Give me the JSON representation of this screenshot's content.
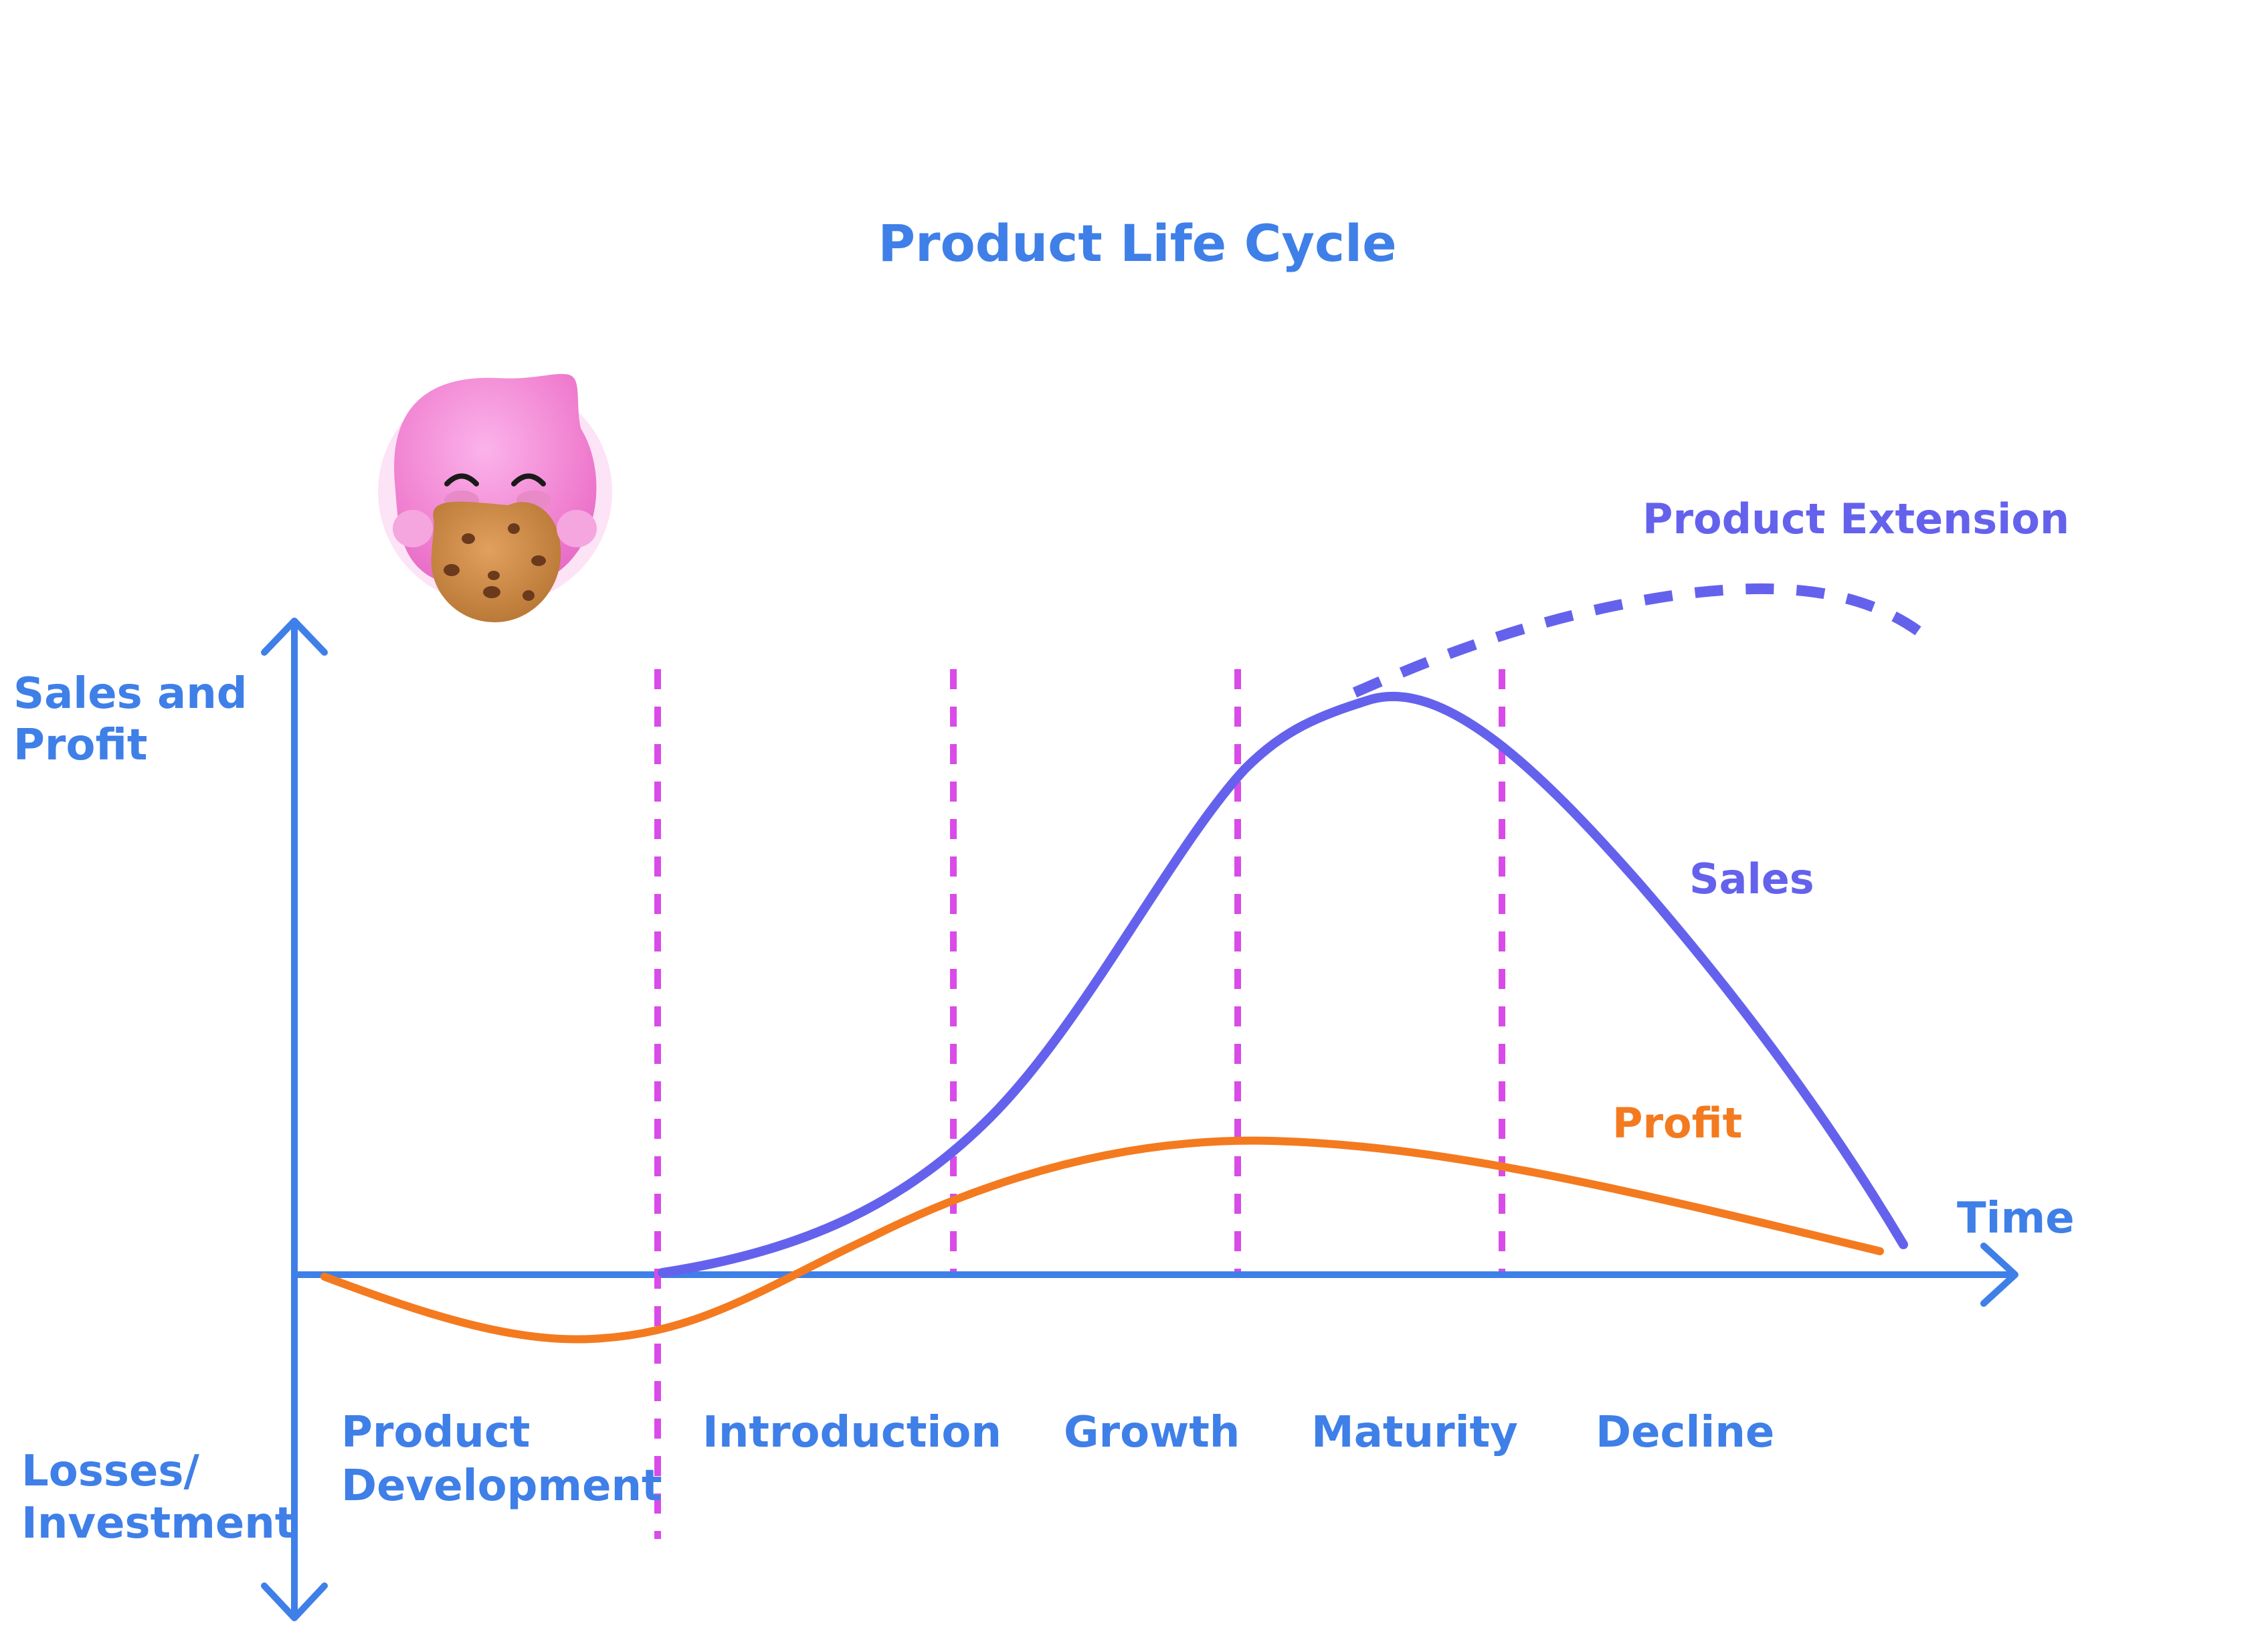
{
  "title": "Product Life Cycle",
  "axes": {
    "y_label_top": [
      "Sales and",
      "Profit"
    ],
    "y_label_bottom": [
      "Losses/",
      "Investment"
    ],
    "x_label": "Time"
  },
  "stages": [
    {
      "lines": [
        "Product",
        "Development"
      ]
    },
    {
      "lines": [
        "Introduction"
      ]
    },
    {
      "lines": [
        "Growth"
      ]
    },
    {
      "lines": [
        "Maturity"
      ]
    },
    {
      "lines": [
        "Decline"
      ]
    }
  ],
  "curves": {
    "sales": "Sales",
    "profit": "Profit",
    "extension": "Product Extension"
  },
  "colors": {
    "axis": "#3f7fe8",
    "text": "#3f7fe8",
    "sales": "#6462ec",
    "profit": "#f47a1f",
    "dividers": "#d94be8",
    "mascot_pink": "#f48fd6",
    "cookie": "#c78643"
  },
  "mascot": {
    "icon": "pink-blob-eating-cookie-icon"
  }
}
